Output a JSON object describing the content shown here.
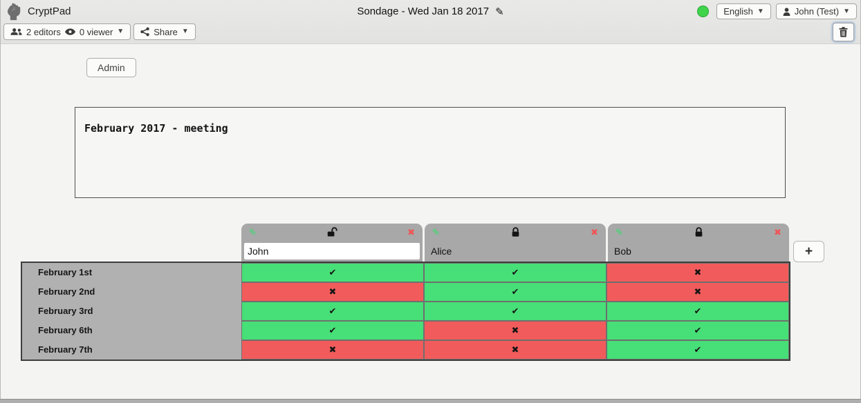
{
  "topbar": {
    "app_name": "CryptPad",
    "title": "Sondage - Wed Jan 18 2017",
    "edit_icon": "pencil-icon",
    "status_color": "#3fd44b",
    "language_button": "English",
    "user_button": "John (Test)"
  },
  "toolbar": {
    "editors": "2 editors",
    "viewers": "0 viewer",
    "share": "Share"
  },
  "admin": {
    "label": "Admin"
  },
  "description": {
    "text": "February 2017 - meeting"
  },
  "poll": {
    "columns": [
      {
        "name": "John",
        "locked": false,
        "editable": true
      },
      {
        "name": "Alice",
        "locked": true,
        "editable": false
      },
      {
        "name": "Bob",
        "locked": true,
        "editable": false
      }
    ],
    "rows": [
      {
        "label": "February 1st",
        "votes": [
          "yes",
          "yes",
          "no"
        ]
      },
      {
        "label": "February 2nd",
        "votes": [
          "no",
          "yes",
          "no"
        ]
      },
      {
        "label": "February 3rd",
        "votes": [
          "yes",
          "yes",
          "yes"
        ]
      },
      {
        "label": "February 6th",
        "votes": [
          "yes",
          "no",
          "yes"
        ]
      },
      {
        "label": "February 7th",
        "votes": [
          "no",
          "no",
          "yes"
        ]
      }
    ],
    "marks": {
      "yes": "✔",
      "no": "✖"
    },
    "colors": {
      "yes": "#47df77",
      "no": "#f25b5b"
    },
    "header_remove": "✖",
    "header_edit": "✎",
    "add_column": "+"
  }
}
